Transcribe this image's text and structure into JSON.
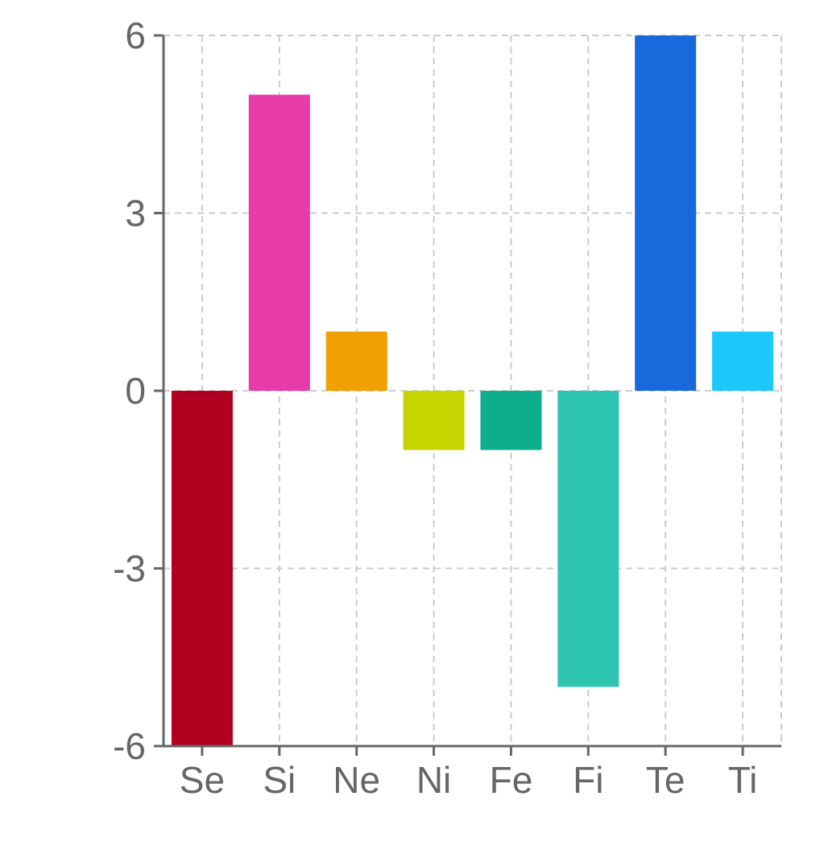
{
  "chart_data": {
    "type": "bar",
    "categories": [
      "Se",
      "Si",
      "Ne",
      "Ni",
      "Fe",
      "Fi",
      "Te",
      "Ti"
    ],
    "values": [
      -6,
      5,
      1,
      -1,
      -1,
      -5,
      6,
      1
    ],
    "colors": [
      "#b00020",
      "#e63ba9",
      "#f0a000",
      "#c6d400",
      "#0eae8c",
      "#2ec5b0",
      "#1a69dc",
      "#1cc8ff"
    ],
    "title": "",
    "xlabel": "",
    "ylabel": "",
    "ylim": [
      -6,
      6
    ],
    "yticks": [
      -6,
      -3,
      0,
      3,
      6
    ],
    "ytick_labels": [
      "-6",
      "-3",
      "0",
      "3",
      "6"
    ],
    "grid": true,
    "legend": "none"
  }
}
